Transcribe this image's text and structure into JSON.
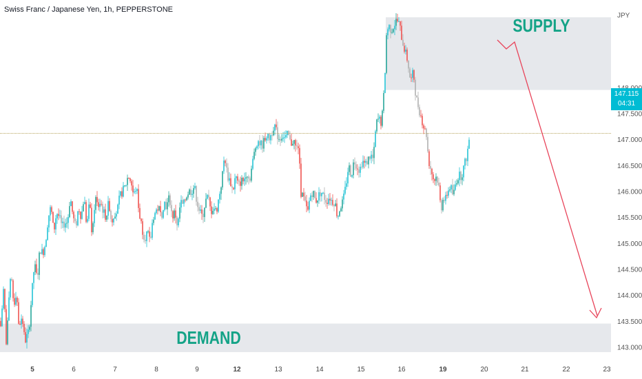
{
  "header": {
    "title": "Swiss Franc / Japanese Yen, 1h, PEPPERSTONE",
    "currency": "JPY"
  },
  "price_tag": {
    "price": "147.115",
    "countdown": "04:31"
  },
  "zones": {
    "supply_label": "SUPPLY",
    "demand_label": "DEMAND"
  },
  "colors": {
    "up": "#26a69a",
    "up_alt": "#22c3d6",
    "down": "#ef5350",
    "down_alt": "#b0b0b0",
    "zone": "#e6e8ec",
    "zone_text": "#14a387",
    "arrow": "#e8445a",
    "tag": "#00bcd4",
    "price_line": "#b5a25a"
  },
  "chart_data": {
    "type": "line",
    "y_range": [
      142.9,
      149.55
    ],
    "current_price": 147.115,
    "supply_zone": [
      147.95,
      149.35
    ],
    "demand_zone": [
      142.9,
      143.45
    ],
    "yticks": [
      "143.000",
      "143.500",
      "144.000",
      "144.500",
      "145.000",
      "145.500",
      "146.000",
      "146.500",
      "147.000",
      "147.500",
      "148.000",
      "JPY"
    ],
    "ytick_values": [
      143.0,
      143.5,
      144.0,
      144.5,
      145.0,
      145.5,
      146.0,
      146.5,
      147.0,
      147.5,
      148.0,
      149.4
    ],
    "xticks": [
      "5",
      "6",
      "7",
      "8",
      "9",
      "12",
      "13",
      "14",
      "15",
      "16",
      "19",
      "20",
      "21",
      "22",
      "23"
    ],
    "xtick_bold": [
      true,
      false,
      false,
      false,
      false,
      true,
      false,
      false,
      false,
      false,
      true,
      false,
      false,
      false,
      false
    ],
    "path": [
      [
        0,
        143.5
      ],
      [
        2,
        143.3
      ],
      [
        4,
        144.2
      ],
      [
        6,
        144.0
      ],
      [
        9,
        143.1
      ],
      [
        12,
        143.7
      ],
      [
        16,
        144.4
      ],
      [
        20,
        143.8
      ],
      [
        24,
        144.1
      ],
      [
        27,
        143.4
      ],
      [
        32,
        143.6
      ],
      [
        36,
        143.1
      ],
      [
        42,
        143.3
      ],
      [
        46,
        144.0
      ],
      [
        50,
        144.6
      ],
      [
        54,
        144.3
      ],
      [
        58,
        144.9
      ],
      [
        62,
        144.8
      ],
      [
        66,
        145.0
      ],
      [
        70,
        145.5
      ],
      [
        74,
        145.7
      ],
      [
        78,
        145.2
      ],
      [
        82,
        145.6
      ],
      [
        86,
        145.5
      ],
      [
        90,
        145.3
      ],
      [
        94,
        145.4
      ],
      [
        98,
        145.4
      ],
      [
        102,
        145.9
      ],
      [
        106,
        145.5
      ],
      [
        110,
        145.3
      ],
      [
        114,
        145.7
      ],
      [
        118,
        145.5
      ],
      [
        122,
        145.9
      ],
      [
        126,
        145.3
      ],
      [
        130,
        145.8
      ],
      [
        134,
        145.1
      ],
      [
        138,
        145.9
      ],
      [
        142,
        145.7
      ],
      [
        146,
        145.8
      ],
      [
        150,
        145.6
      ],
      [
        154,
        145.5
      ],
      [
        158,
        145.8
      ],
      [
        162,
        145.4
      ],
      [
        166,
        145.6
      ],
      [
        170,
        145.6
      ],
      [
        174,
        145.9
      ],
      [
        178,
        146.0
      ],
      [
        182,
        146.1
      ],
      [
        186,
        146.3
      ],
      [
        190,
        146.2
      ],
      [
        194,
        145.9
      ],
      [
        198,
        146.1
      ],
      [
        202,
        145.6
      ],
      [
        206,
        145.3
      ],
      [
        210,
        145.1
      ],
      [
        214,
        145.2
      ],
      [
        218,
        145.0
      ],
      [
        222,
        145.5
      ],
      [
        226,
        145.6
      ],
      [
        230,
        145.7
      ],
      [
        234,
        145.5
      ],
      [
        238,
        145.8
      ],
      [
        242,
        145.7
      ],
      [
        246,
        145.9
      ],
      [
        250,
        145.5
      ],
      [
        254,
        145.6
      ],
      [
        258,
        145.3
      ],
      [
        262,
        145.8
      ],
      [
        266,
        145.7
      ],
      [
        270,
        145.9
      ],
      [
        274,
        146.0
      ],
      [
        278,
        146.0
      ],
      [
        282,
        146.1
      ],
      [
        286,
        145.8
      ],
      [
        290,
        145.6
      ],
      [
        294,
        145.5
      ],
      [
        298,
        145.8
      ],
      [
        302,
        145.9
      ],
      [
        306,
        145.6
      ],
      [
        310,
        145.7
      ],
      [
        314,
        145.6
      ],
      [
        318,
        145.9
      ],
      [
        322,
        146.2
      ],
      [
        326,
        146.7
      ],
      [
        330,
        146.3
      ],
      [
        334,
        146.2
      ],
      [
        338,
        146.0
      ],
      [
        342,
        146.3
      ],
      [
        346,
        146.1
      ],
      [
        350,
        146.2
      ],
      [
        354,
        146.2
      ],
      [
        358,
        146.4
      ],
      [
        362,
        146.2
      ],
      [
        366,
        146.5
      ],
      [
        370,
        146.8
      ],
      [
        374,
        147.0
      ],
      [
        378,
        146.9
      ],
      [
        382,
        146.9
      ],
      [
        386,
        147.1
      ],
      [
        390,
        147.0
      ],
      [
        394,
        147.1
      ],
      [
        398,
        147.3
      ],
      [
        402,
        147.1
      ],
      [
        406,
        147.0
      ],
      [
        410,
        147.1
      ],
      [
        414,
        147.0
      ],
      [
        418,
        147.1
      ],
      [
        422,
        146.9
      ],
      [
        426,
        147.0
      ],
      [
        430,
        146.8
      ],
      [
        434,
        146.9
      ],
      [
        436,
        146.0
      ],
      [
        440,
        145.9
      ],
      [
        444,
        145.7
      ],
      [
        447,
        145.6
      ],
      [
        450,
        145.9
      ],
      [
        454,
        146.0
      ],
      [
        458,
        145.8
      ],
      [
        462,
        145.9
      ],
      [
        466,
        146.0
      ],
      [
        470,
        145.9
      ],
      [
        474,
        145.8
      ],
      [
        478,
        145.9
      ],
      [
        482,
        145.8
      ],
      [
        486,
        145.8
      ],
      [
        490,
        145.5
      ],
      [
        494,
        145.7
      ],
      [
        498,
        145.8
      ],
      [
        502,
        146.1
      ],
      [
        506,
        146.5
      ],
      [
        510,
        146.3
      ],
      [
        514,
        146.6
      ],
      [
        518,
        146.5
      ],
      [
        522,
        146.4
      ],
      [
        526,
        146.6
      ],
      [
        530,
        146.5
      ],
      [
        534,
        146.6
      ],
      [
        538,
        146.7
      ],
      [
        542,
        146.6
      ],
      [
        546,
        147.3
      ],
      [
        550,
        147.4
      ],
      [
        554,
        147.3
      ],
      [
        558,
        148.0
      ],
      [
        561,
        149.0
      ],
      [
        564,
        149.2
      ],
      [
        568,
        149.1
      ],
      [
        572,
        149.2
      ],
      [
        576,
        149.3
      ],
      [
        580,
        149.2
      ],
      [
        584,
        148.9
      ],
      [
        588,
        148.7
      ],
      [
        592,
        148.5
      ],
      [
        596,
        148.1
      ],
      [
        600,
        148.3
      ],
      [
        604,
        147.8
      ],
      [
        608,
        147.6
      ],
      [
        612,
        147.4
      ],
      [
        616,
        147.2
      ],
      [
        619,
        147.1
      ],
      [
        622,
        146.6
      ],
      [
        626,
        146.4
      ],
      [
        630,
        146.2
      ],
      [
        634,
        146.3
      ],
      [
        638,
        146.0
      ],
      [
        640,
        145.6
      ],
      [
        643,
        145.9
      ],
      [
        646,
        145.8
      ],
      [
        650,
        146.0
      ],
      [
        654,
        146.1
      ],
      [
        658,
        145.9
      ],
      [
        662,
        146.2
      ],
      [
        666,
        146.3
      ],
      [
        670,
        146.3
      ],
      [
        674,
        146.5
      ],
      [
        678,
        146.7
      ],
      [
        682,
        147.1
      ]
    ]
  }
}
